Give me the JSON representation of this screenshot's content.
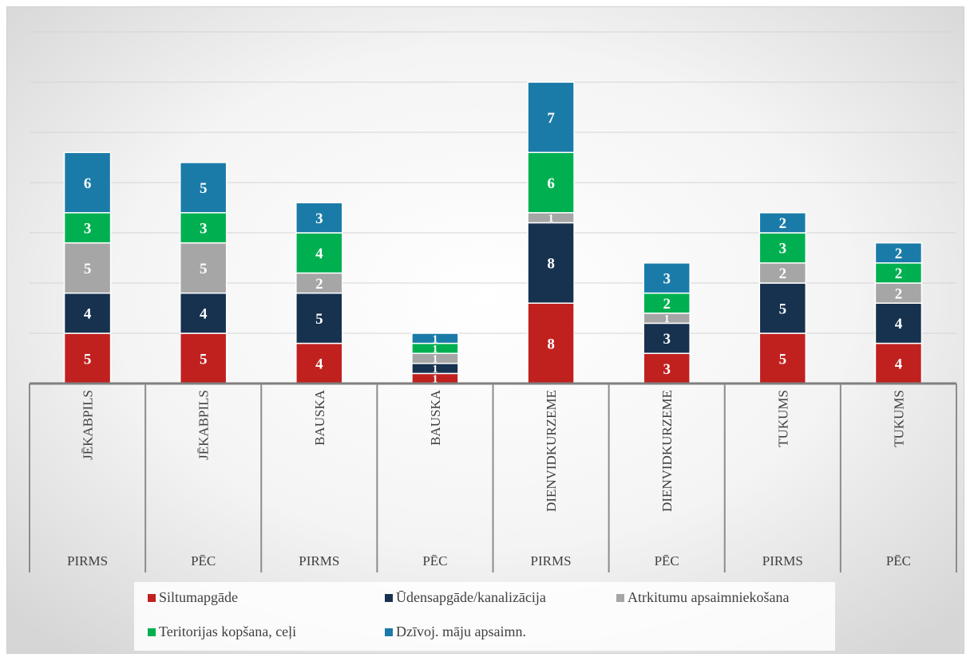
{
  "chart_data": {
    "type": "bar",
    "stacked": true,
    "categories": [
      {
        "region": "JĒKABPILS",
        "period": "PIRMS"
      },
      {
        "region": "JĒKABPILS",
        "period": "PĒC"
      },
      {
        "region": "BAUSKA",
        "period": "PIRMS"
      },
      {
        "region": "BAUSKA",
        "period": "PĒC"
      },
      {
        "region": "DIENVIDKURZEME",
        "period": "PIRMS"
      },
      {
        "region": "DIENVIDKURZEME",
        "period": "PĒC"
      },
      {
        "region": "TUKUMS",
        "period": "PIRMS"
      },
      {
        "region": "TUKUMS",
        "period": "PĒC"
      }
    ],
    "series": [
      {
        "name": "Siltumapgāde",
        "color": "#c0211f",
        "values": [
          5,
          5,
          4,
          1,
          8,
          3,
          5,
          4
        ]
      },
      {
        "name": "Ūdensapgāde/kanalizācija",
        "color": "#17324f",
        "values": [
          4,
          4,
          5,
          1,
          8,
          3,
          5,
          4
        ]
      },
      {
        "name": "Atrkitumu apsaimniekošana",
        "color": "#a6a6a6",
        "values": [
          5,
          5,
          2,
          1,
          1,
          1,
          2,
          2
        ]
      },
      {
        "name": "Teritorijas kopšana, ceļi",
        "color": "#00b050",
        "values": [
          3,
          3,
          4,
          1,
          6,
          2,
          3,
          2
        ]
      },
      {
        "name": "Dzīvoj. māju apsaimn.",
        "color": "#1b7ba8",
        "values": [
          6,
          5,
          3,
          1,
          7,
          3,
          2,
          2
        ]
      }
    ],
    "ylim": [
      0,
      36
    ],
    "grid": true,
    "legend_position": "bottom"
  }
}
